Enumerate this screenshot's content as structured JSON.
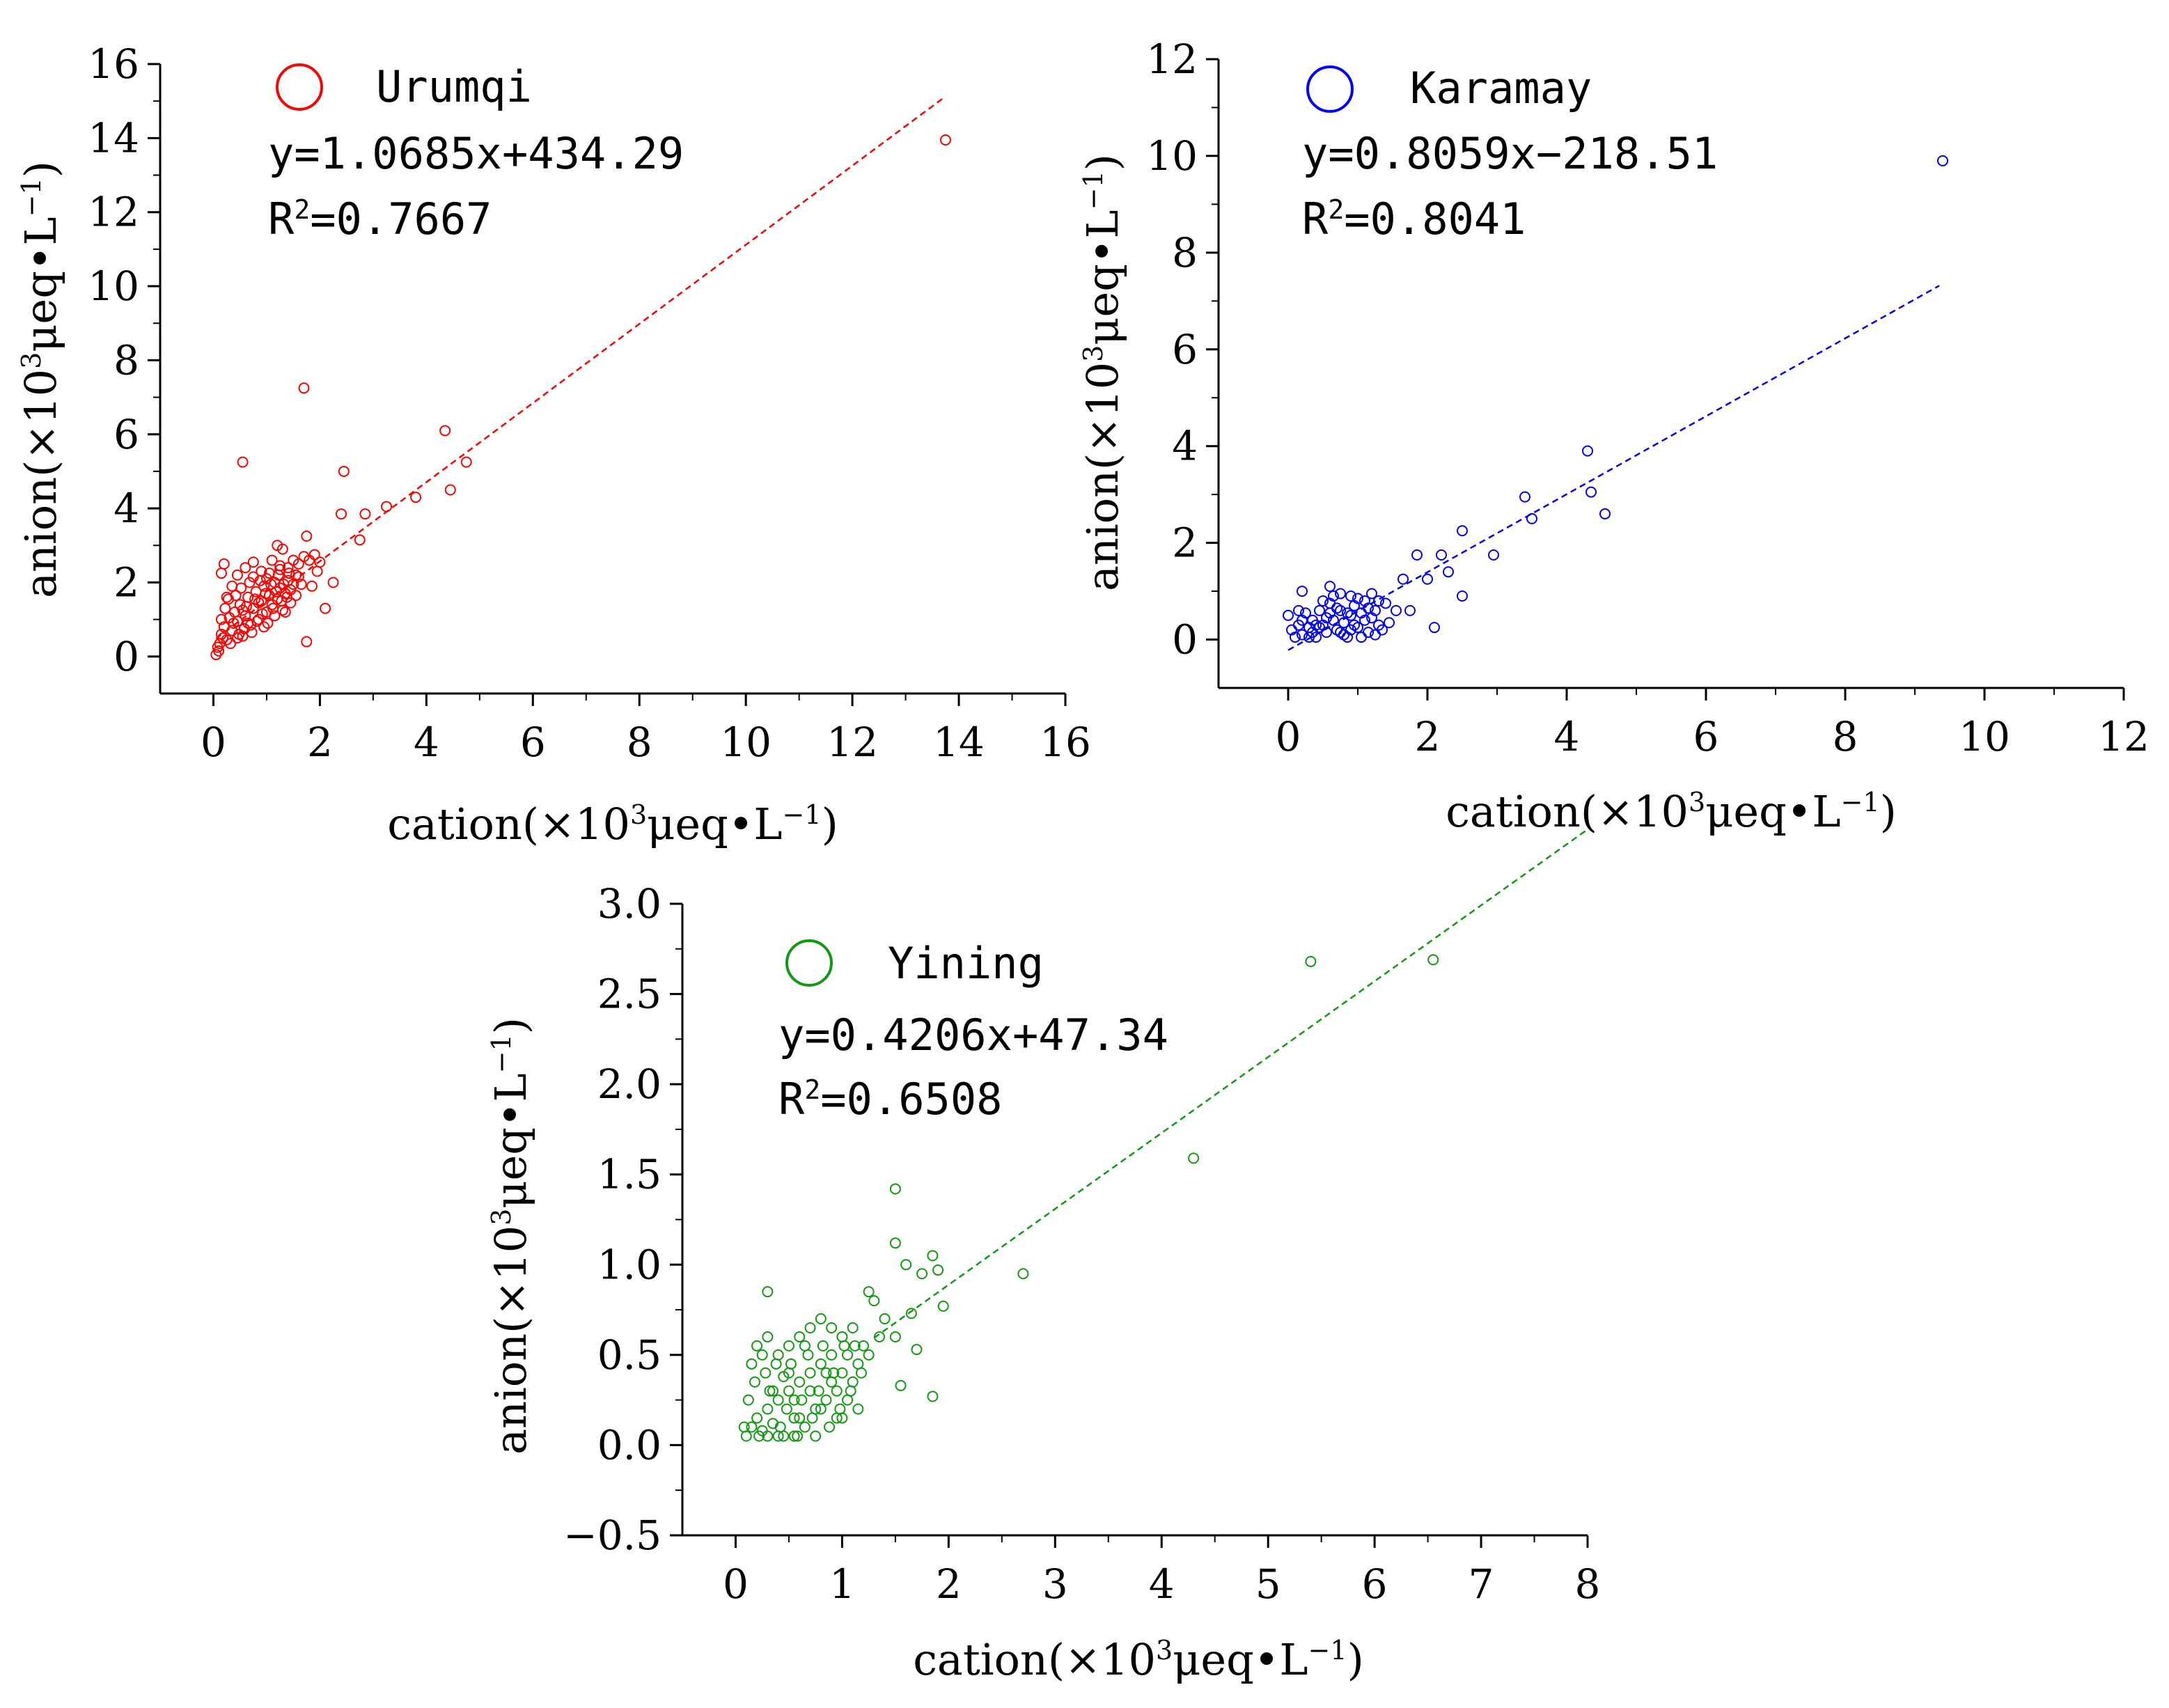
{
  "chart_data": [
    {
      "type": "scatter",
      "name": "Urumqi",
      "color": "#ff0000",
      "legend": "Urumqi",
      "equation": "y=1.0685x+434.29",
      "r2_prefix": "R",
      "r2_sup": "2",
      "r2_value": "=0.7667",
      "xlabel_main": "cation(×10",
      "xlabel_sup": "3",
      "xlabel_mid": "μeq•L",
      "xlabel_sup2": "−1",
      "xlabel_end": ")",
      "ylabel_main": "anion(×10",
      "ylabel_sup": "3",
      "ylabel_mid": "μeq•L",
      "ylabel_sup2": "−1",
      "ylabel_end": ")",
      "xlim": [
        -1,
        16
      ],
      "ylim": [
        -1,
        16
      ],
      "xticks": [
        0,
        2,
        4,
        6,
        8,
        10,
        12,
        14,
        16
      ],
      "xtick_labels": [
        "0",
        "2",
        "4",
        "6",
        "8",
        "10",
        "12",
        "14",
        "16"
      ],
      "yticks": [
        0,
        2,
        4,
        6,
        8,
        10,
        12,
        14,
        16
      ],
      "ytick_labels": [
        "0",
        "2",
        "4",
        "6",
        "8",
        "10",
        "12",
        "14",
        "16"
      ],
      "fit": {
        "slope": 1.0685,
        "intercept_k": 0.43429,
        "x_range": [
          0.05,
          13.7
        ]
      },
      "points": [
        [
          13.75,
          13.95
        ],
        [
          1.7,
          7.25
        ],
        [
          0.55,
          5.25
        ],
        [
          4.35,
          6.1
        ],
        [
          2.45,
          5.0
        ],
        [
          4.75,
          5.25
        ],
        [
          4.45,
          4.5
        ],
        [
          3.8,
          4.3
        ],
        [
          3.25,
          4.05
        ],
        [
          2.85,
          3.85
        ],
        [
          2.4,
          3.85
        ],
        [
          2.75,
          3.15
        ],
        [
          1.75,
          3.25
        ],
        [
          1.2,
          3.0
        ],
        [
          1.3,
          2.9
        ],
        [
          2.25,
          2.0
        ],
        [
          1.75,
          0.4
        ],
        [
          2.1,
          1.3
        ],
        [
          0.2,
          2.5
        ],
        [
          0.15,
          2.25
        ],
        [
          0.45,
          2.2
        ],
        [
          0.6,
          2.4
        ],
        [
          0.75,
          2.55
        ],
        [
          0.9,
          2.3
        ],
        [
          1.0,
          2.1
        ],
        [
          1.1,
          2.6
        ],
        [
          1.25,
          2.35
        ],
        [
          1.4,
          2.4
        ],
        [
          1.5,
          2.6
        ],
        [
          1.6,
          2.5
        ],
        [
          1.7,
          2.7
        ],
        [
          1.8,
          2.6
        ],
        [
          1.9,
          2.75
        ],
        [
          2.0,
          2.55
        ],
        [
          1.55,
          2.2
        ],
        [
          1.65,
          1.95
        ],
        [
          1.85,
          1.9
        ],
        [
          1.95,
          2.3
        ],
        [
          0.1,
          0.15
        ],
        [
          0.12,
          0.35
        ],
        [
          0.15,
          0.6
        ],
        [
          0.2,
          0.8
        ],
        [
          0.25,
          0.45
        ],
        [
          0.3,
          1.05
        ],
        [
          0.35,
          0.7
        ],
        [
          0.4,
          1.2
        ],
        [
          0.45,
          0.95
        ],
        [
          0.5,
          1.4
        ],
        [
          0.55,
          0.55
        ],
        [
          0.6,
          1.1
        ],
        [
          0.65,
          1.6
        ],
        [
          0.7,
          0.85
        ],
        [
          0.75,
          1.3
        ],
        [
          0.8,
          1.75
        ],
        [
          0.85,
          1.0
        ],
        [
          0.9,
          1.5
        ],
        [
          0.95,
          1.9
        ],
        [
          1.0,
          1.2
        ],
        [
          1.05,
          1.65
        ],
        [
          1.1,
          1.4
        ],
        [
          1.15,
          2.0
        ],
        [
          1.2,
          1.55
        ],
        [
          1.25,
          1.85
        ],
        [
          1.3,
          1.25
        ],
        [
          1.35,
          1.7
        ],
        [
          1.4,
          2.05
        ],
        [
          1.45,
          1.45
        ],
        [
          1.5,
          1.95
        ],
        [
          1.55,
          1.65
        ],
        [
          1.6,
          2.15
        ],
        [
          0.05,
          0.05
        ],
        [
          0.08,
          0.25
        ],
        [
          0.18,
          0.5
        ],
        [
          0.22,
          1.3
        ],
        [
          0.28,
          1.55
        ],
        [
          0.32,
          0.35
        ],
        [
          0.38,
          0.9
        ],
        [
          0.42,
          1.65
        ],
        [
          0.48,
          0.6
        ],
        [
          0.52,
          1.85
        ],
        [
          0.58,
          0.75
        ],
        [
          0.62,
          1.35
        ],
        [
          0.68,
          2.0
        ],
        [
          0.72,
          0.65
        ],
        [
          0.78,
          1.55
        ],
        [
          0.82,
          0.95
        ],
        [
          0.88,
          2.05
        ],
        [
          0.92,
          1.15
        ],
        [
          0.98,
          1.7
        ],
        [
          1.02,
          0.9
        ],
        [
          1.08,
          1.95
        ],
        [
          1.12,
          1.3
        ],
        [
          1.18,
          1.75
        ],
        [
          1.22,
          2.2
        ],
        [
          1.28,
          1.5
        ],
        [
          1.32,
          1.95
        ],
        [
          1.38,
          1.6
        ],
        [
          1.42,
          2.25
        ],
        [
          0.15,
          1.0
        ],
        [
          0.25,
          1.6
        ],
        [
          0.35,
          1.9
        ],
        [
          0.45,
          0.5
        ],
        [
          0.55,
          1.25
        ],
        [
          0.65,
          0.9
        ],
        [
          0.75,
          2.15
        ],
        [
          0.85,
          1.45
        ],
        [
          0.95,
          0.8
        ],
        [
          1.05,
          2.25
        ],
        [
          1.15,
          1.1
        ],
        [
          1.25,
          2.45
        ],
        [
          1.35,
          1.2
        ],
        [
          1.45,
          1.8
        ]
      ]
    },
    {
      "type": "scatter",
      "name": "Karamay",
      "color": "#0000ff",
      "legend": "Karamay",
      "equation": "y=0.8059x−218.51",
      "r2_prefix": "R",
      "r2_sup": "2",
      "r2_value": "=0.8041",
      "xlabel_main": "cation(×10",
      "xlabel_sup": "3",
      "xlabel_mid": "μeq•L",
      "xlabel_sup2": "−1",
      "xlabel_end": ")",
      "ylabel_main": "anion(×10",
      "ylabel_sup": "3",
      "ylabel_mid": "μeq•L",
      "ylabel_sup2": "−1",
      "ylabel_end": ")",
      "xlim": [
        -1,
        12
      ],
      "ylim": [
        -1,
        12
      ],
      "xticks": [
        0,
        2,
        4,
        6,
        8,
        10,
        12
      ],
      "xtick_labels": [
        "0",
        "2",
        "4",
        "6",
        "8",
        "10",
        "12"
      ],
      "yticks": [
        0,
        2,
        4,
        6,
        8,
        10,
        12
      ],
      "ytick_labels": [
        "0",
        "2",
        "4",
        "6",
        "8",
        "10",
        "12"
      ],
      "fit": {
        "slope": 0.8059,
        "intercept_k": -0.21851,
        "x_range": [
          0.0,
          9.35
        ]
      },
      "points": [
        [
          9.4,
          9.9
        ],
        [
          4.3,
          3.9
        ],
        [
          3.4,
          2.95
        ],
        [
          4.35,
          3.05
        ],
        [
          3.5,
          2.5
        ],
        [
          4.55,
          2.6
        ],
        [
          2.5,
          2.25
        ],
        [
          2.95,
          1.75
        ],
        [
          2.2,
          1.75
        ],
        [
          1.85,
          1.75
        ],
        [
          2.3,
          1.4
        ],
        [
          2.0,
          1.25
        ],
        [
          1.65,
          1.25
        ],
        [
          2.5,
          0.9
        ],
        [
          2.1,
          0.25
        ],
        [
          1.75,
          0.6
        ],
        [
          0.2,
          1.0
        ],
        [
          0.6,
          1.1
        ],
        [
          0.75,
          0.95
        ],
        [
          0.9,
          0.9
        ],
        [
          1.2,
          0.95
        ],
        [
          1.3,
          0.8
        ],
        [
          1.4,
          0.75
        ],
        [
          1.55,
          0.6
        ],
        [
          1.45,
          0.35
        ],
        [
          1.35,
          0.2
        ],
        [
          0.0,
          0.5
        ],
        [
          0.05,
          0.2
        ],
        [
          0.1,
          0.05
        ],
        [
          0.15,
          0.3
        ],
        [
          0.2,
          0.1
        ],
        [
          0.25,
          0.55
        ],
        [
          0.3,
          0.25
        ],
        [
          0.35,
          0.4
        ],
        [
          0.4,
          0.05
        ],
        [
          0.45,
          0.6
        ],
        [
          0.5,
          0.3
        ],
        [
          0.55,
          0.15
        ],
        [
          0.6,
          0.75
        ],
        [
          0.65,
          0.4
        ],
        [
          0.7,
          0.2
        ],
        [
          0.75,
          0.6
        ],
        [
          0.8,
          0.35
        ],
        [
          0.85,
          0.05
        ],
        [
          0.9,
          0.5
        ],
        [
          0.95,
          0.7
        ],
        [
          1.0,
          0.25
        ],
        [
          1.05,
          0.55
        ],
        [
          1.1,
          0.8
        ],
        [
          1.15,
          0.15
        ],
        [
          1.2,
          0.45
        ],
        [
          1.25,
          0.6
        ],
        [
          1.3,
          0.3
        ],
        [
          1.05,
          0.05
        ],
        [
          0.3,
          0.05
        ],
        [
          0.55,
          0.45
        ],
        [
          0.7,
          0.65
        ],
        [
          0.85,
          0.55
        ],
        [
          0.95,
          0.3
        ],
        [
          1.1,
          0.4
        ],
        [
          0.4,
          0.3
        ],
        [
          0.6,
          0.55
        ],
        [
          0.8,
          0.1
        ],
        [
          1.0,
          0.85
        ],
        [
          0.5,
          0.8
        ],
        [
          0.65,
          0.9
        ],
        [
          0.2,
          0.4
        ],
        [
          0.35,
          0.15
        ],
        [
          0.45,
          0.25
        ],
        [
          0.75,
          0.15
        ],
        [
          0.9,
          0.2
        ],
        [
          1.15,
          0.65
        ],
        [
          1.25,
          0.1
        ],
        [
          0.15,
          0.6
        ]
      ]
    },
    {
      "type": "scatter",
      "name": "Yining",
      "color": "#119911",
      "legend": "Yining",
      "equation": "y=0.4206x+47.34",
      "r2_prefix": "R",
      "r2_sup": "2",
      "r2_value": "=0.6508",
      "xlabel_main": "cation(×10",
      "xlabel_sup": "3",
      "xlabel_mid": "μeq•L",
      "xlabel_sup2": "−1",
      "xlabel_end": ")",
      "ylabel_main": "anion(×10",
      "ylabel_sup": "3",
      "ylabel_mid": "μeq•L",
      "ylabel_sup2": "−1",
      "ylabel_end": ")",
      "xlim": [
        -0.5,
        8
      ],
      "ylim": [
        -0.5,
        3.0
      ],
      "xticks": [
        0,
        1,
        2,
        3,
        4,
        5,
        6,
        7,
        8
      ],
      "xtick_labels": [
        "0",
        "1",
        "2",
        "3",
        "4",
        "5",
        "6",
        "7",
        "8"
      ],
      "yticks": [
        -0.5,
        0.0,
        0.5,
        1.0,
        1.5,
        2.0,
        2.5,
        3.0
      ],
      "ytick_labels": [
        "−0.5",
        "0.0",
        "0.5",
        "1.0",
        "1.5",
        "2.0",
        "2.5",
        "3.0"
      ],
      "fit": {
        "slope": 0.4206,
        "intercept_k": 0.04734,
        "x_range": [
          1.3,
          8.0
        ]
      },
      "points": [
        [
          5.4,
          2.68
        ],
        [
          6.55,
          2.69
        ],
        [
          4.3,
          1.59
        ],
        [
          2.7,
          0.95
        ],
        [
          1.5,
          1.42
        ],
        [
          1.5,
          1.12
        ],
        [
          1.6,
          1.0
        ],
        [
          1.75,
          0.95
        ],
        [
          1.85,
          1.05
        ],
        [
          1.9,
          0.97
        ],
        [
          1.95,
          0.77
        ],
        [
          1.65,
          0.73
        ],
        [
          1.7,
          0.53
        ],
        [
          1.55,
          0.33
        ],
        [
          1.85,
          0.27
        ],
        [
          0.3,
          0.85
        ],
        [
          1.25,
          0.85
        ],
        [
          1.3,
          0.8
        ],
        [
          1.4,
          0.7
        ],
        [
          1.5,
          0.6
        ],
        [
          0.2,
          0.55
        ],
        [
          0.3,
          0.6
        ],
        [
          0.4,
          0.5
        ],
        [
          0.5,
          0.55
        ],
        [
          0.6,
          0.6
        ],
        [
          0.7,
          0.65
        ],
        [
          0.8,
          0.7
        ],
        [
          0.9,
          0.65
        ],
        [
          1.0,
          0.6
        ],
        [
          1.1,
          0.65
        ],
        [
          1.2,
          0.55
        ],
        [
          0.1,
          0.05
        ],
        [
          0.15,
          0.1
        ],
        [
          0.2,
          0.15
        ],
        [
          0.25,
          0.08
        ],
        [
          0.3,
          0.2
        ],
        [
          0.35,
          0.12
        ],
        [
          0.4,
          0.25
        ],
        [
          0.45,
          0.05
        ],
        [
          0.5,
          0.3
        ],
        [
          0.55,
          0.15
        ],
        [
          0.6,
          0.35
        ],
        [
          0.65,
          0.1
        ],
        [
          0.7,
          0.4
        ],
        [
          0.75,
          0.2
        ],
        [
          0.8,
          0.45
        ],
        [
          0.85,
          0.25
        ],
        [
          0.9,
          0.5
        ],
        [
          0.95,
          0.3
        ],
        [
          1.0,
          0.4
        ],
        [
          1.05,
          0.5
        ],
        [
          1.1,
          0.35
        ],
        [
          1.15,
          0.45
        ],
        [
          0.12,
          0.25
        ],
        [
          0.18,
          0.35
        ],
        [
          0.22,
          0.05
        ],
        [
          0.28,
          0.4
        ],
        [
          0.32,
          0.3
        ],
        [
          0.38,
          0.45
        ],
        [
          0.42,
          0.1
        ],
        [
          0.48,
          0.2
        ],
        [
          0.52,
          0.45
        ],
        [
          0.58,
          0.05
        ],
        [
          0.62,
          0.25
        ],
        [
          0.68,
          0.5
        ],
        [
          0.72,
          0.15
        ],
        [
          0.78,
          0.3
        ],
        [
          0.82,
          0.55
        ],
        [
          0.88,
          0.1
        ],
        [
          0.92,
          0.4
        ],
        [
          0.98,
          0.2
        ],
        [
          1.02,
          0.55
        ],
        [
          1.08,
          0.3
        ],
        [
          1.12,
          0.55
        ],
        [
          1.18,
          0.4
        ],
        [
          0.15,
          0.45
        ],
        [
          0.25,
          0.5
        ],
        [
          0.35,
          0.3
        ],
        [
          0.45,
          0.38
        ],
        [
          0.55,
          0.05
        ],
        [
          0.65,
          0.55
        ],
        [
          0.75,
          0.05
        ],
        [
          0.85,
          0.4
        ],
        [
          0.95,
          0.15
        ],
        [
          1.05,
          0.25
        ],
        [
          1.15,
          0.2
        ],
        [
          1.25,
          0.5
        ],
        [
          1.35,
          0.6
        ],
        [
          0.08,
          0.1
        ],
        [
          0.4,
          0.05
        ],
        [
          0.6,
          0.15
        ],
        [
          0.8,
          0.2
        ],
        [
          1.0,
          0.15
        ],
        [
          0.5,
          0.4
        ],
        [
          0.7,
          0.3
        ],
        [
          0.9,
          0.35
        ],
        [
          0.3,
          0.05
        ],
        [
          0.55,
          0.25
        ]
      ]
    }
  ]
}
